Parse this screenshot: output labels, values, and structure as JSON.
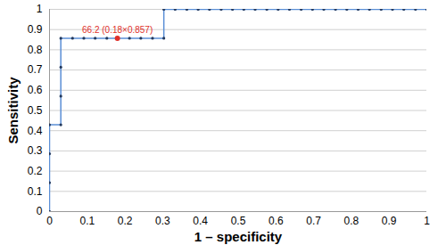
{
  "chart_data": {
    "type": "line",
    "xlabel": "1 – specificity",
    "ylabel": "Sensitivity",
    "x": [
      0,
      0,
      0,
      0,
      0.03,
      0.03,
      0.03,
      0.03,
      0.061,
      0.091,
      0.121,
      0.152,
      0.18,
      0.212,
      0.242,
      0.273,
      0.303,
      0.303,
      0.333,
      0.364,
      0.394,
      0.424,
      0.455,
      0.485,
      0.515,
      0.545,
      0.576,
      0.606,
      0.636,
      0.667,
      0.697,
      0.727,
      0.758,
      0.788,
      0.818,
      0.848,
      0.879,
      0.909,
      0.939,
      0.97,
      1
    ],
    "values": [
      0,
      0.143,
      0.286,
      0.429,
      0.429,
      0.571,
      0.714,
      0.857,
      0.857,
      0.857,
      0.857,
      0.857,
      0.857,
      0.857,
      0.857,
      0.857,
      0.857,
      1,
      1,
      1,
      1,
      1,
      1,
      1,
      1,
      1,
      1,
      1,
      1,
      1,
      1,
      1,
      1,
      1,
      1,
      1,
      1,
      1,
      1,
      1,
      1
    ],
    "color": "#5b8fd6",
    "marker": "circle",
    "xlim": [
      0,
      1
    ],
    "xticks": [
      0,
      0.1,
      0.2,
      0.3,
      0.4,
      0.5,
      0.6,
      0.7,
      0.8,
      0.9,
      1
    ],
    "ylim": [
      0,
      1
    ],
    "yticks": [
      0,
      0.1,
      0.2,
      0.3,
      0.4,
      0.5,
      0.6,
      0.7,
      0.8,
      0.9,
      1
    ],
    "grid": true,
    "annotations": [
      {
        "text": "66.2 (0.18×0.857)",
        "x": 0.18,
        "y": 0.857,
        "color": "#e0302a"
      }
    ]
  }
}
